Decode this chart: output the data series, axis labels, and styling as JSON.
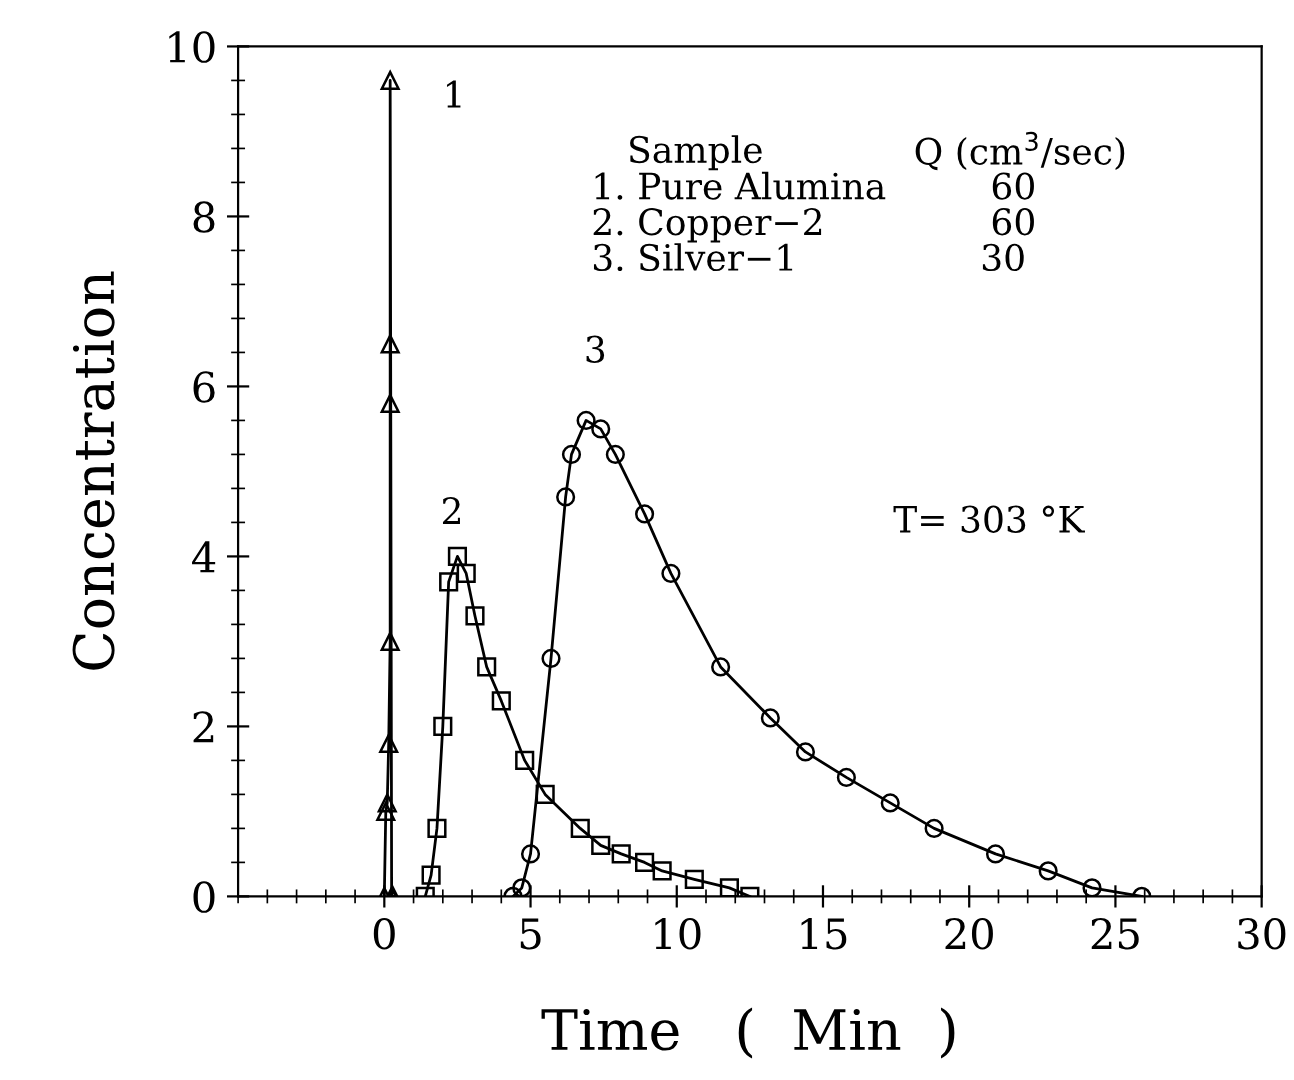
{
  "chart_data": {
    "type": "line",
    "xlabel": "Time   (  Min  )",
    "ylabel": "Concentration",
    "xlim": [
      -5,
      30
    ],
    "xticks": [
      0,
      5,
      10,
      15,
      20,
      25,
      30
    ],
    "ylim": [
      0,
      10
    ],
    "yticks": [
      0,
      2,
      4,
      6,
      8,
      10
    ],
    "grid": false,
    "legend": false,
    "line_style": "solid",
    "series": [
      {
        "color": "#000000",
        "marker": "triangle",
        "x": [
          0,
          0.05,
          0.1,
          0.15,
          0.2,
          0.2,
          0.2,
          0.2,
          0.25,
          0.3
        ],
        "values": [
          0,
          1.0,
          1.1,
          1.8,
          3.0,
          5.8,
          6.5,
          9.6,
          0,
          0
        ]
      },
      {
        "color": "#000000",
        "marker": "square",
        "x": [
          1.4,
          1.6,
          1.8,
          2.0,
          2.2,
          2.5,
          2.8,
          3.1,
          3.5,
          4.0,
          4.8,
          5.5,
          6.7,
          7.4,
          8.1,
          8.9,
          9.5,
          10.6,
          11.8,
          12.5
        ],
        "values": [
          0,
          0.25,
          0.8,
          2.0,
          3.7,
          4.0,
          3.8,
          3.3,
          2.7,
          2.3,
          1.6,
          1.2,
          0.8,
          0.6,
          0.5,
          0.4,
          0.3,
          0.2,
          0.1,
          0
        ]
      },
      {
        "color": "#000000",
        "marker": "circle",
        "x": [
          4.4,
          4.7,
          5.0,
          5.7,
          6.2,
          6.4,
          6.9,
          7.4,
          7.9,
          8.9,
          9.8,
          11.5,
          13.2,
          14.4,
          15.8,
          17.3,
          18.8,
          20.9,
          22.7,
          24.2,
          25.9
        ],
        "values": [
          0,
          0.1,
          0.5,
          2.8,
          4.7,
          5.2,
          5.6,
          5.5,
          5.2,
          4.5,
          3.8,
          2.7,
          2.1,
          1.7,
          1.4,
          1.1,
          0.8,
          0.5,
          0.3,
          0.1,
          0
        ]
      }
    ],
    "annotations": [
      "1",
      "2",
      "3",
      "Sample",
      "Q (cm$^{3}$/sec)",
      "1. Pure Alumina",
      "60",
      "2. Copper−2",
      "60",
      "3. Silver−1",
      "30",
      "T= 303 °K"
    ]
  }
}
